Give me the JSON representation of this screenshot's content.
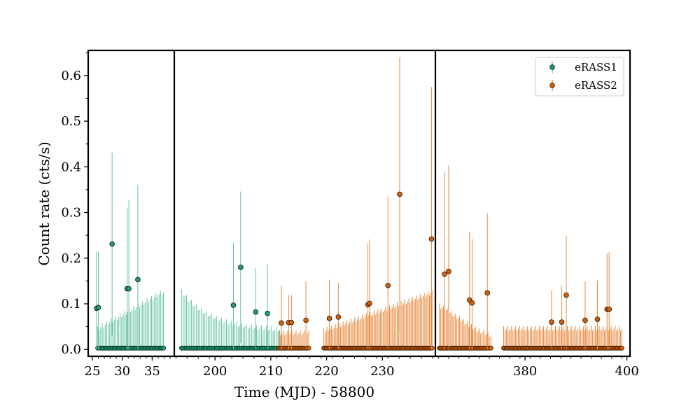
{
  "chart_data": {
    "type": "scatter",
    "xlabel": "Time (MJD) - 58800",
    "ylabel": "Count rate (cts/s)",
    "ylim": [
      -0.015,
      0.655
    ],
    "yticks": [
      0.0,
      0.1,
      0.2,
      0.3,
      0.4,
      0.5,
      0.6
    ],
    "ytick_labels": [
      "0.0",
      "0.1",
      "0.2",
      "0.3",
      "0.4",
      "0.5",
      "0.6"
    ],
    "grid": false,
    "legend_placement": "top-right",
    "colors": {
      "eRASS1": "#1b9e77",
      "eRASS2": "#d95f02",
      "errbar_eRASS1": "#66c2a5",
      "errbar_eRASS2": "#e8893f"
    },
    "panels": [
      {
        "xlim": [
          24.3,
          38.7
        ],
        "xticks": [
          25,
          30,
          35
        ],
        "xtick_labels": [
          "25",
          "30",
          "35"
        ]
      },
      {
        "xlim": [
          192.7,
          239.5
        ],
        "xticks": [
          200,
          210,
          220,
          230
        ],
        "xtick_labels": [
          "200",
          "210",
          "220",
          "230"
        ]
      },
      {
        "xlim": [
          362.4,
          400.6
        ],
        "xticks": [
          380,
          400
        ],
        "xtick_labels": [
          "380",
          "400"
        ]
      }
    ],
    "series": [
      {
        "name": "eRASS1",
        "upper_limits": [
          {
            "start": 25.9,
            "end": 36.9,
            "count": 45,
            "base_start": 0.045,
            "base_end": 0.126
          }
        ],
        "detections": [
          {
            "x": 25.7,
            "y": 0.09,
            "err": 0.125
          },
          {
            "x": 26.0,
            "y": 0.092,
            "err": 0.122
          },
          {
            "x": 28.3,
            "y": 0.231,
            "err": 0.2
          },
          {
            "x": 30.8,
            "y": 0.133,
            "err": 0.178
          },
          {
            "x": 31.1,
            "y": 0.133,
            "err": 0.195
          },
          {
            "x": 32.6,
            "y": 0.153,
            "err": 0.208
          },
          {
            "x": 203.3,
            "y": 0.097,
            "err": 0.137
          },
          {
            "x": 204.6,
            "y": 0.18,
            "err": 0.166
          },
          {
            "x": 207.3,
            "y": 0.082,
            "err": 0.096
          },
          {
            "x": 209.4,
            "y": 0.079,
            "err": 0.107
          }
        ],
        "upper_limit_runs": [
          {
            "start": 194.0,
            "end": 211.6,
            "count": 60,
            "base_start": 0.126,
            "base_end": 0.04,
            "decay": true
          }
        ]
      },
      {
        "name": "eRASS2",
        "detections": [
          {
            "x": 211.9,
            "y": 0.058,
            "err": 0.082
          },
          {
            "x": 213.2,
            "y": 0.059,
            "err": 0.06
          },
          {
            "x": 213.7,
            "y": 0.059,
            "err": 0.06
          },
          {
            "x": 216.3,
            "y": 0.064,
            "err": 0.085
          },
          {
            "x": 220.5,
            "y": 0.068,
            "err": 0.085
          },
          {
            "x": 222.1,
            "y": 0.071,
            "err": 0.075
          },
          {
            "x": 227.4,
            "y": 0.098,
            "err": 0.135
          },
          {
            "x": 227.7,
            "y": 0.101,
            "err": 0.14
          },
          {
            "x": 231.0,
            "y": 0.14,
            "err": 0.195
          },
          {
            "x": 233.1,
            "y": 0.34,
            "err": 0.3
          },
          {
            "x": 238.8,
            "y": 0.242,
            "err": 0.333
          },
          {
            "x": 364.2,
            "y": 0.165,
            "err": 0.223
          },
          {
            "x": 365.0,
            "y": 0.171,
            "err": 0.232
          },
          {
            "x": 369.1,
            "y": 0.108,
            "err": 0.15
          },
          {
            "x": 369.6,
            "y": 0.102,
            "err": 0.14
          },
          {
            "x": 372.6,
            "y": 0.124,
            "err": 0.175
          },
          {
            "x": 385.2,
            "y": 0.06,
            "err": 0.07
          },
          {
            "x": 387.2,
            "y": 0.06,
            "err": 0.08
          },
          {
            "x": 388.1,
            "y": 0.119,
            "err": 0.13
          },
          {
            "x": 391.8,
            "y": 0.064,
            "err": 0.085
          },
          {
            "x": 394.2,
            "y": 0.066,
            "err": 0.085
          },
          {
            "x": 396.1,
            "y": 0.088,
            "err": 0.122
          },
          {
            "x": 396.5,
            "y": 0.088,
            "err": 0.125
          }
        ],
        "upper_limit_runs": [
          {
            "start": 211.5,
            "end": 216.8,
            "count": 22,
            "base_start": 0.035,
            "base_end": 0.036
          },
          {
            "start": 219.5,
            "end": 238.9,
            "count": 85,
            "base_start": 0.04,
            "base_end": 0.124
          },
          {
            "start": 363.2,
            "end": 370.8,
            "count": 30,
            "base_start": 0.095,
            "base_end": 0.04
          },
          {
            "start": 371.0,
            "end": 373.3,
            "count": 9,
            "base_start": 0.04,
            "base_end": 0.03
          },
          {
            "start": 375.8,
            "end": 399.0,
            "count": 90,
            "base_start": 0.045,
            "base_end": 0.045
          }
        ]
      }
    ],
    "legend": [
      {
        "label": "eRASS1",
        "color": "#1b9e77"
      },
      {
        "label": "eRASS2",
        "color": "#d95f02"
      }
    ]
  }
}
